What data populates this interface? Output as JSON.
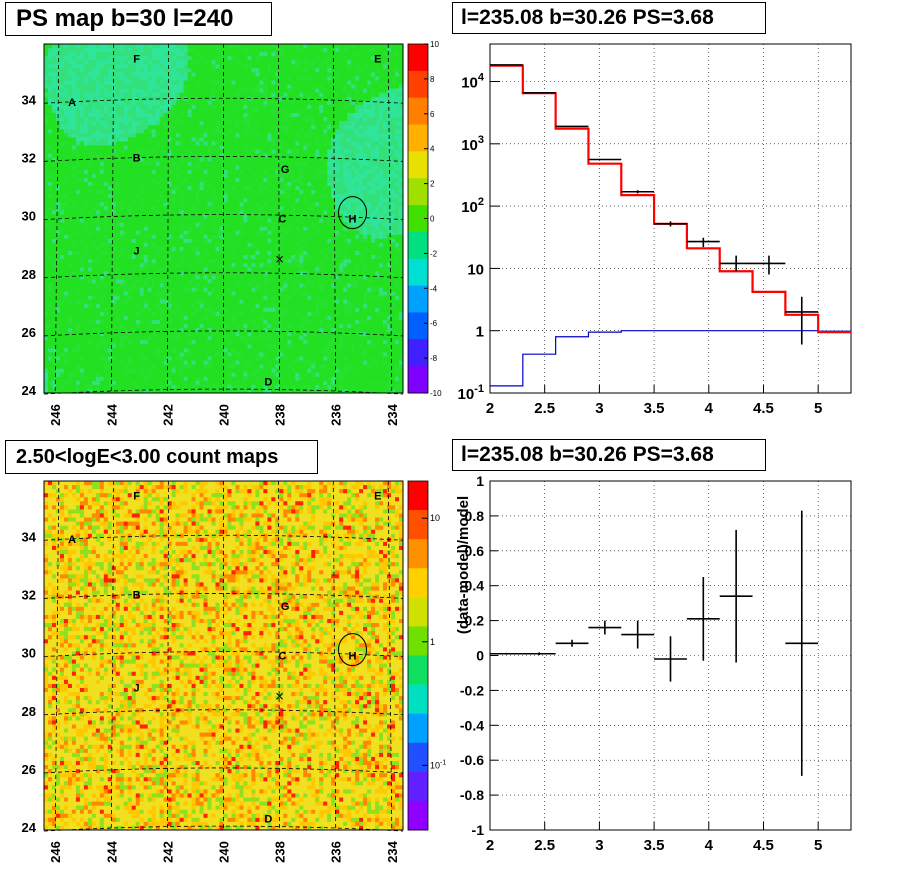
{
  "panels": {
    "ps_map": {
      "title": "PS map b=30 l=240"
    },
    "spectrum": {
      "title": "l=235.08 b=30.26 PS=3.68"
    },
    "count_map": {
      "title": "2.50<logE<3.00 count maps"
    },
    "residual": {
      "title": "l=235.08 b=30.26 PS=3.68"
    }
  },
  "chart_data": [
    {
      "type": "heatmap",
      "title": "PS map b=30 l=240",
      "x_ticks": [
        "246",
        "244",
        "242",
        "240",
        "238",
        "236",
        "234"
      ],
      "x_tick_values": [
        246,
        244,
        242,
        240,
        238,
        236,
        234
      ],
      "y_ticks": [
        "24",
        "26",
        "28",
        "30",
        "32",
        "34"
      ],
      "y_tick_values": [
        24,
        26,
        28,
        30,
        32,
        34
      ],
      "xlim": [
        246.4,
        233.6
      ],
      "ylim": [
        23.9,
        35.9
      ],
      "colorbar": {
        "ticks": [
          "10",
          "8",
          "6",
          "4",
          "2",
          "0",
          "-2",
          "-4",
          "-6",
          "-8",
          "-10"
        ],
        "min": -10,
        "max": 10
      },
      "dominant_color": "#22e022",
      "markers": [
        {
          "label": "A",
          "l": 245.4,
          "b": 33.9
        },
        {
          "label": "B",
          "l": 243.1,
          "b": 32.0
        },
        {
          "label": "C",
          "l": 237.9,
          "b": 29.9
        },
        {
          "label": "D",
          "l": 238.4,
          "b": 24.3
        },
        {
          "label": "E",
          "l": 234.5,
          "b": 35.4
        },
        {
          "label": "F",
          "l": 243.1,
          "b": 35.4
        },
        {
          "label": "G",
          "l": 237.8,
          "b": 31.6
        },
        {
          "label": "H",
          "l": 235.4,
          "b": 29.9
        },
        {
          "label": "J",
          "l": 243.1,
          "b": 28.8
        }
      ],
      "circle": {
        "l": 235.4,
        "b": 30.1
      },
      "cross": {
        "l": 238.0,
        "b": 28.5
      }
    },
    {
      "type": "line",
      "title": "l=235.08 b=30.26 PS=3.68",
      "xlim": [
        2.0,
        5.3
      ],
      "ylim": [
        0.1,
        40000
      ],
      "yscale": "log",
      "grid": true,
      "x_ticks": [
        "2",
        "2.5",
        "3",
        "3.5",
        "4",
        "4.5",
        "5"
      ],
      "x_tick_values": [
        2,
        2.5,
        3,
        3.5,
        4,
        4.5,
        5
      ],
      "y_ticks": [
        "10^4",
        "10^3",
        "10^2",
        "10",
        "1",
        "10^-1"
      ],
      "y_tick_values": [
        10000,
        1000,
        100,
        10,
        1,
        0.1
      ],
      "model_red": {
        "color": "#ff0000",
        "edges": [
          2.0,
          2.3,
          2.6,
          2.9,
          3.2,
          3.5,
          3.8,
          4.1,
          4.4,
          4.7,
          5.0,
          5.3
        ],
        "values": [
          18000,
          6500,
          1750,
          480,
          150,
          52,
          21,
          9,
          4.2,
          1.8,
          0.95
        ]
      },
      "model_blue": {
        "color": "#0000cc",
        "edges": [
          2.0,
          2.3,
          2.6,
          2.9,
          3.2,
          3.5,
          3.8,
          4.1,
          4.4,
          4.7,
          5.0,
          5.3
        ],
        "values": [
          0.13,
          0.42,
          0.8,
          0.95,
          1.0,
          1.0,
          1.0,
          1.0,
          1.0,
          1.0,
          0.98
        ]
      },
      "data_points": [
        {
          "x": 2.15,
          "xerr": 0.15,
          "y": 18500,
          "ylo": 18400,
          "yhi": 18600
        },
        {
          "x": 2.45,
          "xerr": 0.15,
          "y": 6600,
          "ylo": 6550,
          "yhi": 6650
        },
        {
          "x": 2.75,
          "xerr": 0.15,
          "y": 1900,
          "ylo": 1880,
          "yhi": 1920
        },
        {
          "x": 3.05,
          "xerr": 0.15,
          "y": 560,
          "ylo": 545,
          "yhi": 575
        },
        {
          "x": 3.35,
          "xerr": 0.15,
          "y": 170,
          "ylo": 160,
          "yhi": 180
        },
        {
          "x": 3.65,
          "xerr": 0.15,
          "y": 52,
          "ylo": 47,
          "yhi": 57
        },
        {
          "x": 3.95,
          "xerr": 0.15,
          "y": 27,
          "ylo": 22,
          "yhi": 31
        },
        {
          "x": 4.25,
          "xerr": 0.15,
          "y": 12,
          "ylo": 9,
          "yhi": 16
        },
        {
          "x": 4.55,
          "xerr": 0.15,
          "y": 12,
          "ylo": 8,
          "yhi": 16
        },
        {
          "x": 4.85,
          "xerr": 0.15,
          "y": 2.0,
          "ylo": 0.6,
          "yhi": 3.5
        }
      ]
    },
    {
      "type": "heatmap",
      "title": "2.50<logE<3.00 count maps",
      "x_ticks": [
        "246",
        "244",
        "242",
        "240",
        "238",
        "236",
        "234"
      ],
      "x_tick_values": [
        246,
        244,
        242,
        240,
        238,
        236,
        234
      ],
      "y_ticks": [
        "24",
        "26",
        "28",
        "30",
        "32",
        "34"
      ],
      "y_tick_values": [
        24,
        26,
        28,
        30,
        32,
        34
      ],
      "xlim": [
        246.4,
        233.6
      ],
      "ylim": [
        23.9,
        35.9
      ],
      "colorbar": {
        "scale": "log",
        "ticks": [
          "10",
          "1",
          "10^-1"
        ],
        "tick_values": [
          10,
          1,
          0.1
        ]
      },
      "dominant_color": "#f0e020",
      "markers": [
        {
          "label": "A",
          "l": 245.4,
          "b": 33.9
        },
        {
          "label": "B",
          "l": 243.1,
          "b": 32.0
        },
        {
          "label": "C",
          "l": 237.9,
          "b": 29.9
        },
        {
          "label": "D",
          "l": 238.4,
          "b": 24.3
        },
        {
          "label": "E",
          "l": 234.5,
          "b": 35.4
        },
        {
          "label": "F",
          "l": 243.1,
          "b": 35.4
        },
        {
          "label": "G",
          "l": 237.8,
          "b": 31.6
        },
        {
          "label": "H",
          "l": 235.4,
          "b": 29.9
        },
        {
          "label": "J",
          "l": 243.1,
          "b": 28.8
        }
      ],
      "circle": {
        "l": 235.4,
        "b": 30.1
      },
      "cross": {
        "l": 238.0,
        "b": 28.5
      }
    },
    {
      "type": "scatter",
      "title": "l=235.08 b=30.26 PS=3.68",
      "ylabel": "(data-model)/model",
      "xlim": [
        2.0,
        5.3
      ],
      "ylim": [
        -1,
        1
      ],
      "grid": true,
      "x_ticks": [
        "2",
        "2.5",
        "3",
        "3.5",
        "4",
        "4.5",
        "5"
      ],
      "x_tick_values": [
        2,
        2.5,
        3,
        3.5,
        4,
        4.5,
        5
      ],
      "y_ticks": [
        "1",
        "0.8",
        "0.6",
        "0.4",
        "0.2",
        "0",
        "-0.2",
        "-0.4",
        "-0.6",
        "-0.8",
        "-1"
      ],
      "y_tick_values": [
        1,
        0.8,
        0.6,
        0.4,
        0.2,
        0,
        -0.2,
        -0.4,
        -0.6,
        -0.8,
        -1
      ],
      "points": [
        {
          "x": 2.15,
          "xerr": 0.15,
          "y": 0.01,
          "yerr": 0.005
        },
        {
          "x": 2.45,
          "xerr": 0.15,
          "y": 0.01,
          "yerr": 0.008
        },
        {
          "x": 2.75,
          "xerr": 0.15,
          "y": 0.07,
          "yerr": 0.02
        },
        {
          "x": 3.05,
          "xerr": 0.15,
          "y": 0.16,
          "yerr": 0.04
        },
        {
          "x": 3.35,
          "xerr": 0.15,
          "y": 0.12,
          "yerr": 0.08
        },
        {
          "x": 3.65,
          "xerr": 0.15,
          "y": -0.02,
          "yerr": 0.13
        },
        {
          "x": 3.95,
          "xerr": 0.15,
          "y": 0.21,
          "yerr": 0.24
        },
        {
          "x": 4.25,
          "xerr": 0.15,
          "y": 0.34,
          "yerr": 0.38
        },
        {
          "x": 4.85,
          "xerr": 0.15,
          "y": 0.07,
          "yerr": 0.76
        }
      ]
    }
  ]
}
